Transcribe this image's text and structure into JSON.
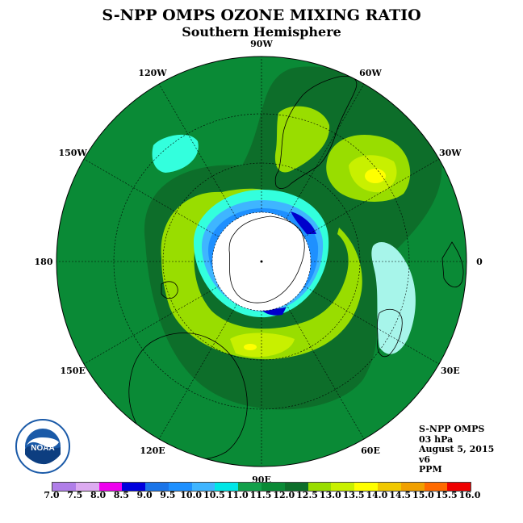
{
  "title": "S-NPP OMPS OZONE MIXING RATIO",
  "subtitle": "Southern Hemisphere",
  "meridian_labels": [
    {
      "text": "90W",
      "angle": -90
    },
    {
      "text": "60W",
      "angle": -60
    },
    {
      "text": "30W",
      "angle": -30
    },
    {
      "text": "0",
      "angle": 0
    },
    {
      "text": "30E",
      "angle": 30
    },
    {
      "text": "60E",
      "angle": 60
    },
    {
      "text": "90E",
      "angle": 90
    },
    {
      "text": "120E",
      "angle": 120
    },
    {
      "text": "150E",
      "angle": 150
    },
    {
      "text": "180",
      "angle": 180
    },
    {
      "text": "150W",
      "angle": -150
    },
    {
      "text": "120W",
      "angle": -120
    }
  ],
  "info": {
    "instrument": "S-NPP OMPS",
    "level": "03 hPa",
    "date": "August 5, 2015",
    "version": "v6",
    "units": "PPM"
  },
  "logo_text": "NOAA",
  "colorbar": {
    "labels": [
      "7.0",
      "7.5",
      "8.0",
      "8.5",
      "9.0",
      "9.5",
      "10.0",
      "10.5",
      "11.0",
      "11.5",
      "12.0",
      "12.5",
      "13.0",
      "13.5",
      "14.0",
      "14.5",
      "15.0",
      "15.5",
      "16.0"
    ],
    "colors": [
      "#b07ee8",
      "#dcaaf0",
      "#ee00ee",
      "#0000dd",
      "#1a74e8",
      "#1e90ff",
      "#3fb5ff",
      "#00e6e6",
      "#12a04a",
      "#0a8a36",
      "#0d6e2a",
      "#99dd00",
      "#c8f000",
      "#ffff00",
      "#f0c800",
      "#f0a000",
      "#ff6a00",
      "#ee0000",
      "#7a4a2a"
    ]
  },
  "colors": {
    "background_field": "#0a8a36",
    "dark_band": "#0d6e2a",
    "high": "#c8f000",
    "peak": "#ffff00",
    "low_cyan": "#33ffdd",
    "low_blue": "#1e90ff",
    "min_blue": "#0000cc"
  }
}
